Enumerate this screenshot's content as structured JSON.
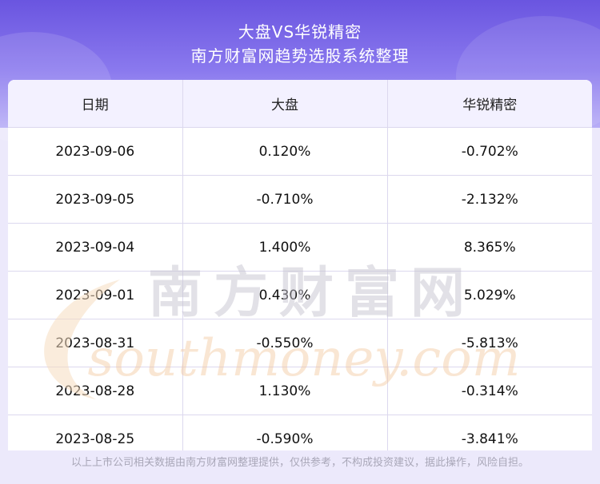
{
  "header": {
    "title_line1": "大盘VS华锐精密",
    "title_line2": "南方财富网趋势选股系统整理"
  },
  "table": {
    "columns": [
      "日期",
      "大盘",
      "华锐精密"
    ],
    "rows": [
      [
        "2023-09-06",
        "0.120%",
        "-0.702%"
      ],
      [
        "2023-09-05",
        "-0.710%",
        "-2.132%"
      ],
      [
        "2023-09-04",
        "1.400%",
        "8.365%"
      ],
      [
        "2023-09-01",
        "0.430%",
        "5.029%"
      ],
      [
        "2023-08-31",
        "-0.550%",
        "-5.813%"
      ],
      [
        "2023-08-28",
        "1.130%",
        "-0.314%"
      ],
      [
        "2023-08-25",
        "-0.590%",
        "-3.841%"
      ]
    ]
  },
  "watermark": {
    "cn_text": "南方财富网",
    "en_text": "southmoney.com"
  },
  "footer": {
    "disclaimer": "以上上市公司相关数据由南方财富网整理提供，仅供参考，不构成投资建议，据此操作，风险自担。"
  },
  "colors": {
    "header_gradient_top": "#6a55e0",
    "header_gradient_bottom": "#b7adf6",
    "watermark_cn": "#c7c5d0",
    "watermark_en": "#f3c8a0"
  }
}
